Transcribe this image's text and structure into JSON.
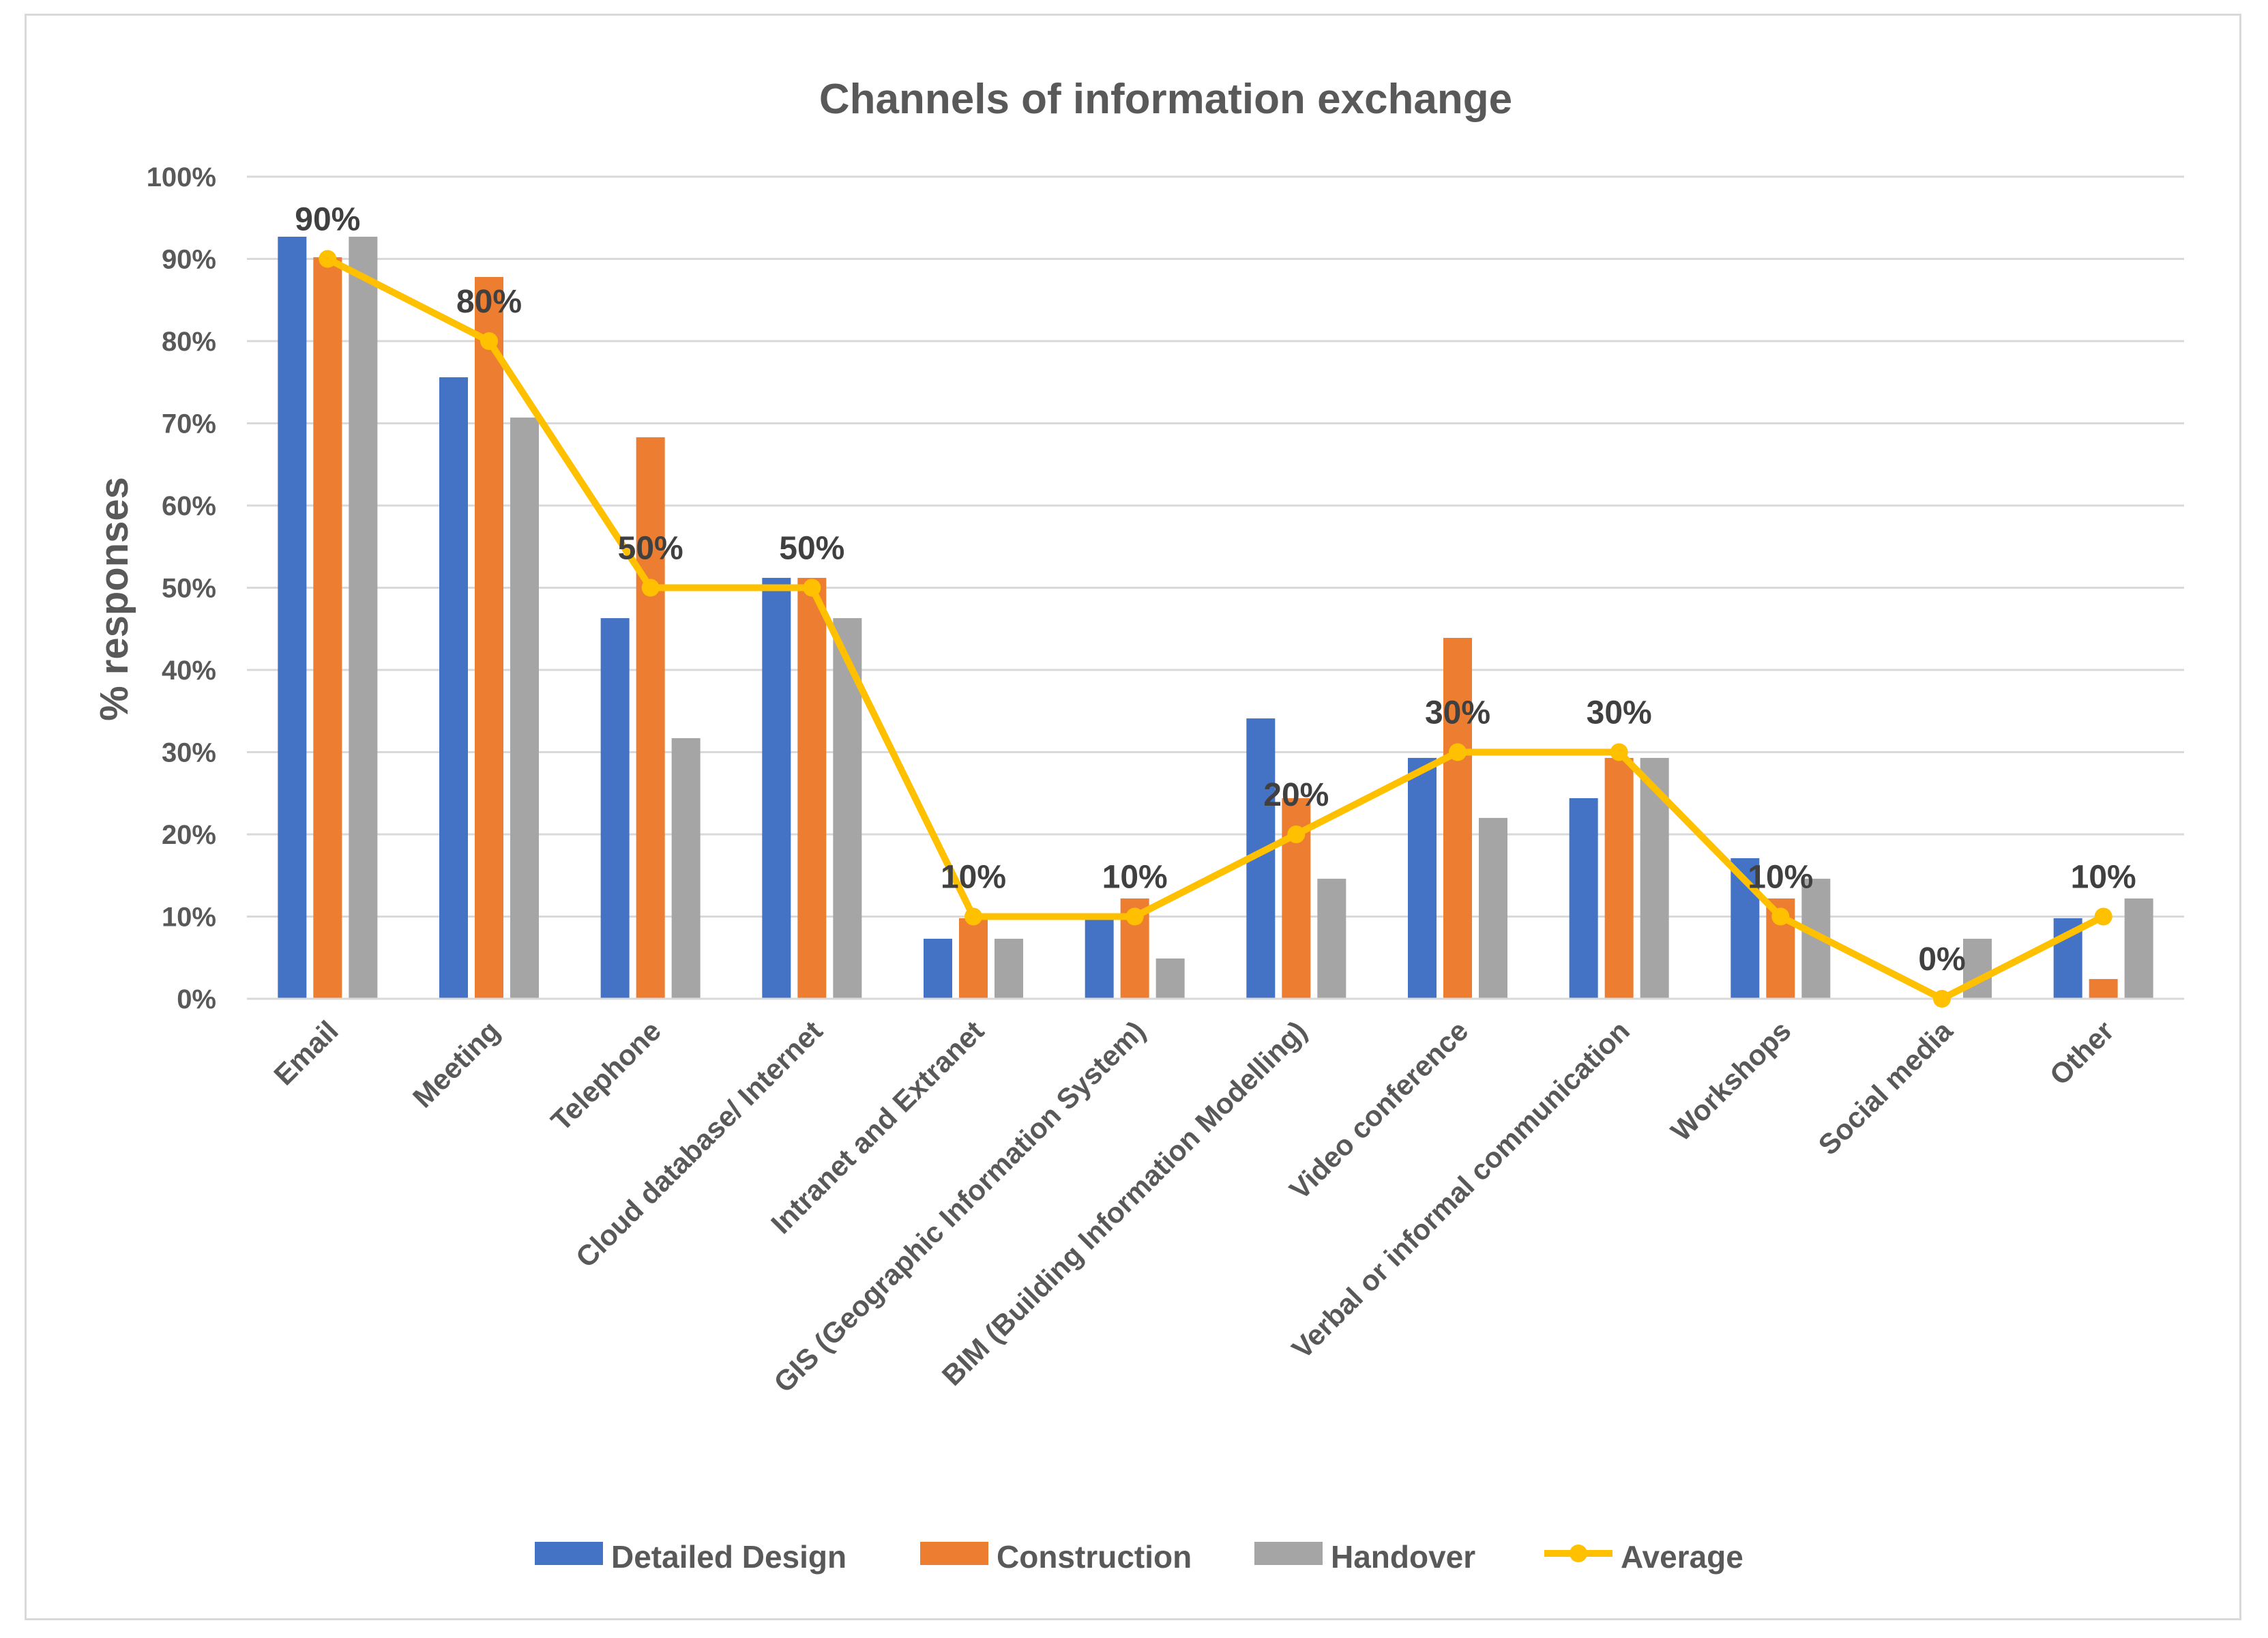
{
  "chart_data": {
    "type": "bar",
    "title": "Channels of information exchange",
    "xlabel": "",
    "ylabel": "% responses",
    "ylim": [
      0,
      100
    ],
    "yticks": [
      "0%",
      "10%",
      "20%",
      "30%",
      "40%",
      "50%",
      "60%",
      "70%",
      "80%",
      "90%",
      "100%"
    ],
    "grid": true,
    "legend_position": "bottom",
    "categories": [
      "Email",
      "Meeting",
      "Telephone",
      "Cloud database/ Internet",
      "Intranet and Extranet",
      "GIS (Geographic Information System)",
      "BIM (Building Information Modelling)",
      "Video conference",
      "Verbal or informal communication",
      "Workshops",
      "Social media",
      "Other"
    ],
    "series": [
      {
        "name": "Detailed Design",
        "kind": "bar",
        "color": "#4472c4",
        "values": [
          92.7,
          75.6,
          46.3,
          51.2,
          7.3,
          9.8,
          34.1,
          29.3,
          24.4,
          17.1,
          0,
          9.8
        ]
      },
      {
        "name": "Construction",
        "kind": "bar",
        "color": "#ed7d31",
        "values": [
          90.2,
          87.8,
          68.3,
          51.2,
          9.8,
          12.2,
          24.4,
          43.9,
          29.3,
          12.2,
          0,
          2.4
        ]
      },
      {
        "name": "Handover",
        "kind": "bar",
        "color": "#a5a5a5",
        "values": [
          92.7,
          70.7,
          31.7,
          46.3,
          7.3,
          4.9,
          14.6,
          22.0,
          29.3,
          14.6,
          7.3,
          12.2
        ]
      },
      {
        "name": "Average",
        "kind": "line",
        "color": "#ffc000",
        "values": [
          90,
          80,
          50,
          50,
          10,
          10,
          20,
          30,
          30,
          10,
          0,
          10
        ],
        "labels": [
          "90%",
          "80%",
          "50%",
          "50%",
          "10%",
          "10%",
          "20%",
          "30%",
          "30%",
          "10%",
          "0%",
          "10%"
        ]
      }
    ]
  }
}
